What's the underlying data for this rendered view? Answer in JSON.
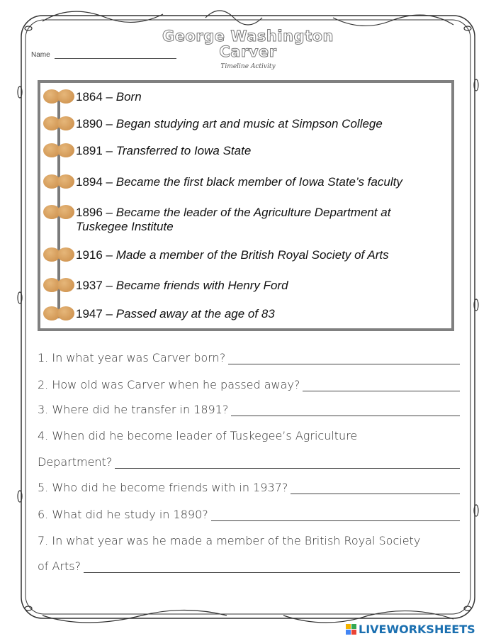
{
  "header": {
    "name_label": "Name",
    "title_line1": "George Washington",
    "title_line2": "Carver",
    "subtitle": "Timeline Activity"
  },
  "timeline": [
    {
      "year": "1864",
      "event": "Born"
    },
    {
      "year": "1890",
      "event": "Began studying art and music at Simpson College"
    },
    {
      "year": "1891",
      "event": "Transferred to Iowa State"
    },
    {
      "year": "1894",
      "event": "Became the first black member of Iowa State’s faculty"
    },
    {
      "year": "1896",
      "event": "Became the leader of the Agriculture Department at",
      "event_cont": "Tuskegee Institute"
    },
    {
      "year": "1916",
      "event": "Made a member of the British Royal Society of Arts"
    },
    {
      "year": "1937",
      "event": "Became friends with Henry Ford"
    },
    {
      "year": "1947",
      "event": "Passed away at the age of 83"
    }
  ],
  "separator": " – ",
  "questions": [
    {
      "text": "1. In what year was Carver born?"
    },
    {
      "text": "2. How old was Carver when he passed away?"
    },
    {
      "text": "3. Where did he transfer in 1891?"
    },
    {
      "text": "4. When did he become leader of Tuskegee’s Agriculture",
      "cont": "Department?"
    },
    {
      "text": "5. Who did he become friends with in 1937?"
    },
    {
      "text": "6. What did he study in 1890?"
    },
    {
      "text": "7. In what year was he made a member of the British Royal Society",
      "cont": "of Arts?"
    }
  ],
  "footer": {
    "logo": "LIVEWORKSHEETS"
  },
  "colors": {
    "timeline_border": "#808080",
    "logo": "#1a6fb0"
  }
}
